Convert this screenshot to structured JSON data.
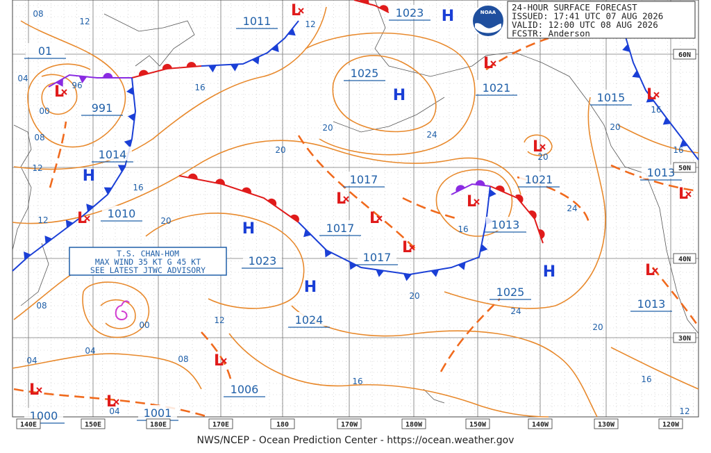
{
  "header": {
    "lines": [
      "24-HOUR SURFACE FORECAST",
      "ISSUED: 17:41 UTC 07 AUG 2026",
      "VALID:  12:00 UTC 08 AUG 2026",
      "FCSTR:  Anderson"
    ]
  },
  "logo": "NOAA",
  "storm_box": {
    "lines": [
      "T.S. CHAN-HOM",
      "MAX WIND 35 KT G 45 KT",
      "SEE LATEST JTWC ADVISORY"
    ]
  },
  "pressure_labels": [
    "1011",
    "1023",
    "01",
    "1025",
    "1021",
    "1015",
    "991",
    "1014",
    "1013",
    "1017",
    "1021",
    "1010",
    "1017",
    "1013",
    "1023",
    "1017",
    "1025",
    "1013",
    "1024",
    "1006",
    "1001",
    "1000"
  ],
  "isobar_labels": [
    "08",
    "12",
    "12",
    "04",
    "96",
    "00",
    "08",
    "16",
    "20",
    "24",
    "20",
    "16",
    "16",
    "20",
    "20",
    "12",
    "16",
    "12",
    "20",
    "24",
    "16",
    "08",
    "00",
    "12",
    "20",
    "24",
    "20",
    "04",
    "04",
    "08",
    "16",
    "16",
    "04",
    "12"
  ],
  "highs": [
    "H",
    "H",
    "H",
    "H",
    "H",
    "H"
  ],
  "lows": [
    "L",
    "L",
    "L",
    "L",
    "L",
    "L",
    "L",
    "L",
    "L",
    "L",
    "L",
    "L",
    "L",
    "L",
    "L"
  ],
  "lon_labels": [
    "140E",
    "150E",
    "180E",
    "170E",
    "180",
    "170W",
    "180W",
    "150W",
    "140W",
    "130W",
    "120W"
  ],
  "lat_labels": [
    "60N",
    "50N",
    "40N",
    "30N"
  ],
  "footer": "NWS/NCEP - Ocean Prediction Center - https://ocean.weather.gov"
}
